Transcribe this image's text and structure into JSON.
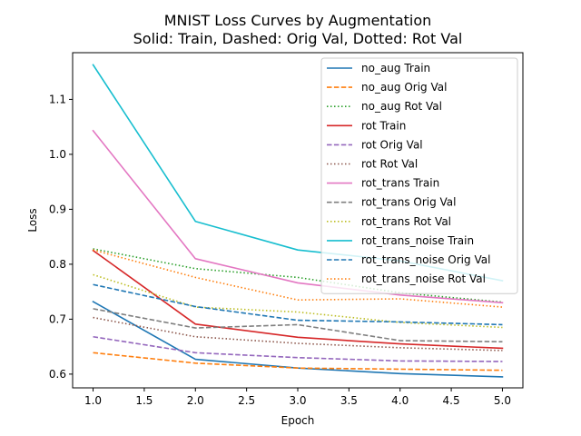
{
  "chart_data": {
    "type": "line",
    "title": "MNIST Loss Curves by Augmentation",
    "subtitle": "Solid: Train, Dashed: Orig Val, Dotted: Rot Val",
    "xlabel": "Epoch",
    "ylabel": "Loss",
    "xlim": [
      0.8,
      5.2
    ],
    "ylim": [
      0.575,
      1.185
    ],
    "xticks": [
      "1.0",
      "1.5",
      "2.0",
      "2.5",
      "3.0",
      "3.5",
      "4.0",
      "4.5",
      "5.0"
    ],
    "yticks": [
      "0.6",
      "0.7",
      "0.8",
      "0.9",
      "1.0",
      "1.1"
    ],
    "legend_position": "upper-right",
    "grid": false,
    "x": [
      1,
      2,
      3,
      4,
      5
    ],
    "series": [
      {
        "name": "no_aug Train",
        "color": "#1f77b4",
        "style": "solid",
        "values": [
          0.732,
          0.627,
          0.611,
          0.601,
          0.595
        ]
      },
      {
        "name": "no_aug Orig Val",
        "color": "#ff7f0e",
        "style": "dashed",
        "values": [
          0.639,
          0.62,
          0.611,
          0.609,
          0.607
        ]
      },
      {
        "name": "no_aug Rot Val",
        "color": "#2ca02c",
        "style": "dotted",
        "values": [
          0.828,
          0.792,
          0.776,
          0.748,
          0.731
        ]
      },
      {
        "name": "rot Train",
        "color": "#d62728",
        "style": "solid",
        "values": [
          0.825,
          0.691,
          0.667,
          0.655,
          0.647
        ]
      },
      {
        "name": "rot Orig Val",
        "color": "#9467bd",
        "style": "dashed",
        "values": [
          0.668,
          0.639,
          0.63,
          0.624,
          0.623
        ]
      },
      {
        "name": "rot Rot Val",
        "color": "#8c564b",
        "style": "dotted",
        "values": [
          0.703,
          0.668,
          0.656,
          0.648,
          0.643
        ]
      },
      {
        "name": "rot_trans Train",
        "color": "#e377c2",
        "style": "solid",
        "values": [
          1.043,
          0.81,
          0.766,
          0.744,
          0.73
        ]
      },
      {
        "name": "rot_trans Orig Val",
        "color": "#7f7f7f",
        "style": "dashed",
        "values": [
          0.719,
          0.684,
          0.69,
          0.661,
          0.659
        ]
      },
      {
        "name": "rot_trans Rot Val",
        "color": "#bcbd22",
        "style": "dotted",
        "values": [
          0.781,
          0.722,
          0.713,
          0.694,
          0.685
        ]
      },
      {
        "name": "rot_trans_noise Train",
        "color": "#17becf",
        "style": "solid",
        "values": [
          1.163,
          0.878,
          0.826,
          0.806,
          0.77
        ]
      },
      {
        "name": "rot_trans_noise Orig Val",
        "color": "#1f77b4",
        "style": "dashed",
        "values": [
          0.763,
          0.723,
          0.698,
          0.695,
          0.69
        ]
      },
      {
        "name": "rot_trans_noise Rot Val",
        "color": "#ff7f0e",
        "style": "dotted",
        "values": [
          0.826,
          0.776,
          0.735,
          0.737,
          0.722
        ]
      }
    ]
  }
}
